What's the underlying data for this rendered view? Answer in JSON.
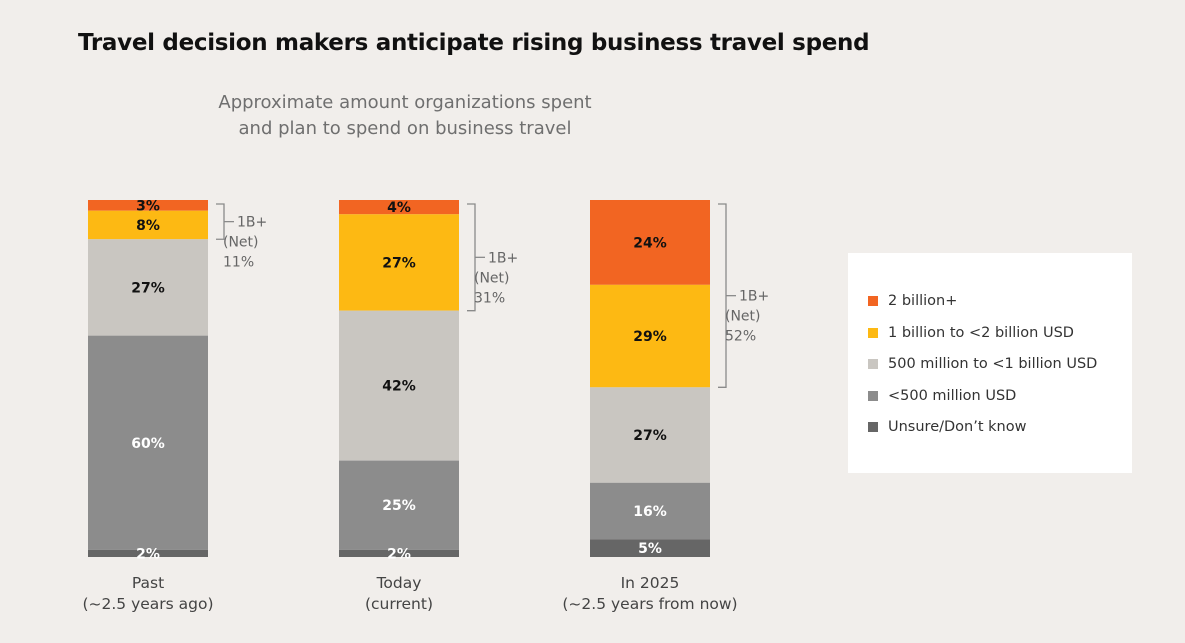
{
  "chart_data": {
    "type": "bar",
    "stacked": true,
    "title": "Travel decision makers anticipate rising business travel spend",
    "subtitle": [
      "Approximate amount organizations spent",
      "and plan to spend on business travel"
    ],
    "categories": [
      [
        "Past",
        "(~2.5 years ago)"
      ],
      [
        "Today",
        "(current)"
      ],
      [
        "In 2025",
        "(~2.5 years from now)"
      ]
    ],
    "series": [
      {
        "name": "2 billion+",
        "color": "#f26522",
        "values": [
          3,
          4,
          24
        ]
      },
      {
        "name": "1 billion to <2 billion USD",
        "color": "#fdb913",
        "values": [
          8,
          27,
          29
        ]
      },
      {
        "name": "500 million to <1 billion USD",
        "color": "#c9c6c1",
        "values": [
          27,
          42,
          27
        ]
      },
      {
        "name": "<500 million USD",
        "color": "#8c8c8c",
        "values": [
          60,
          25,
          16
        ]
      },
      {
        "name": "Unsure/Don’t know",
        "color": "#666666",
        "values": [
          2,
          2,
          5
        ]
      }
    ],
    "data_labels": [
      [
        "3%",
        "4%",
        "24%"
      ],
      [
        "8%",
        "27%",
        "29%"
      ],
      [
        "27%",
        "42%",
        "27%"
      ],
      [
        "60%",
        "25%",
        "16%"
      ],
      [
        "2%",
        "2%",
        "5%"
      ]
    ],
    "net_annotations": [
      [
        "1B+",
        "(Net)",
        "11%"
      ],
      [
        "1B+",
        "(Net)",
        "31%"
      ],
      [
        "1B+",
        "(Net)",
        "52%"
      ]
    ],
    "legend_position": "right",
    "grid": false
  }
}
